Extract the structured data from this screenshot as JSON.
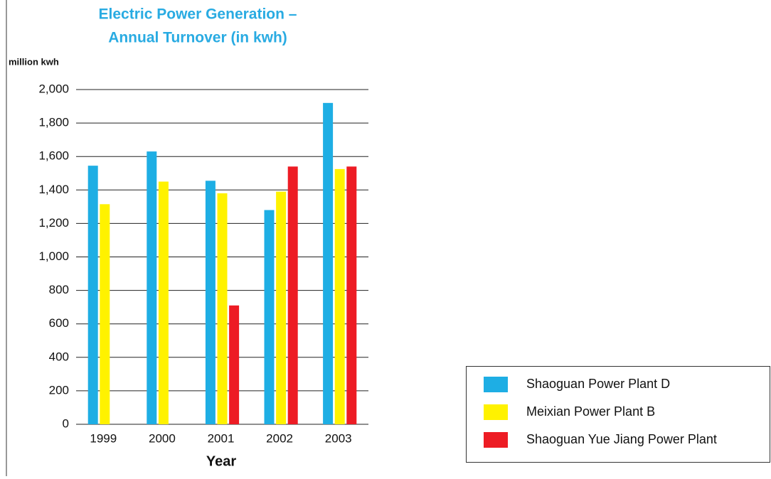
{
  "chart_data": {
    "type": "bar",
    "title": [
      "Electric Power Generation –",
      "Annual Turnover (in kwh)"
    ],
    "y_label": "million kwh",
    "x_label": "Year",
    "categories": [
      "1999",
      "2000",
      "2001",
      "2002",
      "2003"
    ],
    "series": [
      {
        "name": "Shaoguan Power Plant D",
        "color": "#1eaee4",
        "values": [
          1545,
          1630,
          1455,
          1280,
          1920
        ]
      },
      {
        "name": "Meixian Power Plant B",
        "color": "#fff200",
        "values": [
          1315,
          1450,
          1380,
          1390,
          1525
        ]
      },
      {
        "name": "Shaoguan Yue Jiang Power Plant",
        "color": "#ed1c24",
        "values": [
          null,
          null,
          710,
          1540,
          1540
        ]
      }
    ],
    "ylim": [
      0,
      2000
    ],
    "yticks": [
      0,
      200,
      400,
      600,
      800,
      {
        "value": 1000,
        "label": "1,000"
      },
      {
        "value": 1200,
        "label": "1,200"
      },
      {
        "value": 1400,
        "label": "1,400"
      },
      {
        "value": 1600,
        "label": "1,600"
      },
      {
        "value": 1800,
        "label": "1,800"
      },
      {
        "value": 2000,
        "label": "2,000"
      }
    ],
    "grid": true,
    "legend": "lower right"
  }
}
